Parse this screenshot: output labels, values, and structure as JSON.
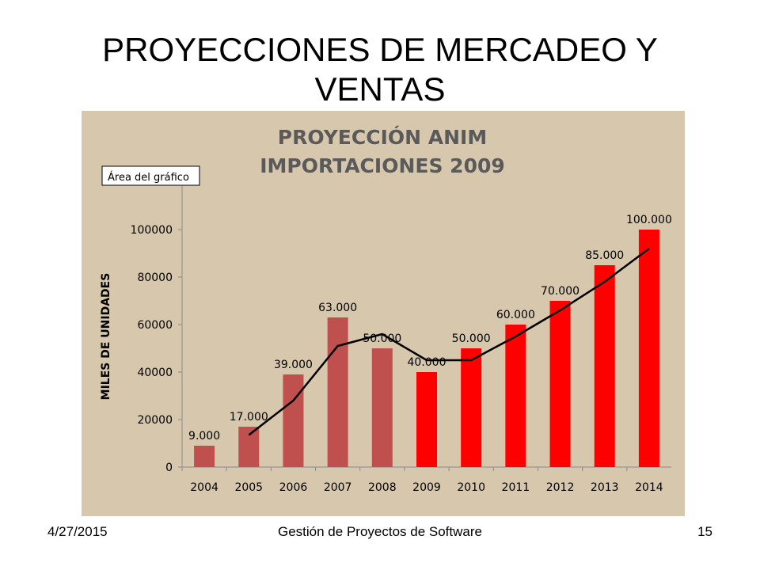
{
  "slide": {
    "title": "PROYECCIONES DE MERCADEO Y VENTAS",
    "footer_date": "4/27/2015",
    "footer_center": "Gestión de Proyectos de Software",
    "page_number": "15"
  },
  "colors": {
    "panel_bg": "#d6c7ad",
    "historic_bar": "#c0504d",
    "projected_bar": "#ff0000",
    "trend_line": "#000000",
    "axis_text": "#000000"
  },
  "chart_data": {
    "type": "bar",
    "title_line1": "PROYECCIÓN ANIM",
    "title_line2": "IMPORTACIONES 2009",
    "tooltip": "Área del gráfico",
    "ylabel": "MILES DE UNIDADES",
    "xlabel": "",
    "ylim": [
      0,
      120000
    ],
    "yticks": [
      0,
      20000,
      40000,
      60000,
      80000,
      100000
    ],
    "ytick_labels": [
      "0",
      "20000",
      "40000",
      "60000",
      "80000",
      "100000"
    ],
    "categories": [
      "2004",
      "2005",
      "2006",
      "2007",
      "2008",
      "2009",
      "2010",
      "2011",
      "2012",
      "2013",
      "2014"
    ],
    "values": [
      9000,
      17000,
      39000,
      63000,
      50000,
      40000,
      50000,
      60000,
      70000,
      85000,
      100000
    ],
    "data_labels": [
      "9.000",
      "17.000",
      "39.000",
      "63.000",
      "50.000",
      "40.000",
      "50.000",
      "60.000",
      "70.000",
      "85.000",
      "100.000"
    ],
    "bar_groups": [
      "historic",
      "historic",
      "historic",
      "historic",
      "historic",
      "projected",
      "projected",
      "projected",
      "projected",
      "projected",
      "projected"
    ],
    "trend_line": {
      "categories": [
        "2005",
        "2006",
        "2007",
        "2008",
        "2009",
        "2010",
        "2011",
        "2012",
        "2013",
        "2014"
      ],
      "values": [
        13500,
        28000,
        51000,
        56000,
        45000,
        45000,
        55000,
        66000,
        78000,
        92000
      ]
    },
    "grid": false,
    "legend": "none"
  }
}
